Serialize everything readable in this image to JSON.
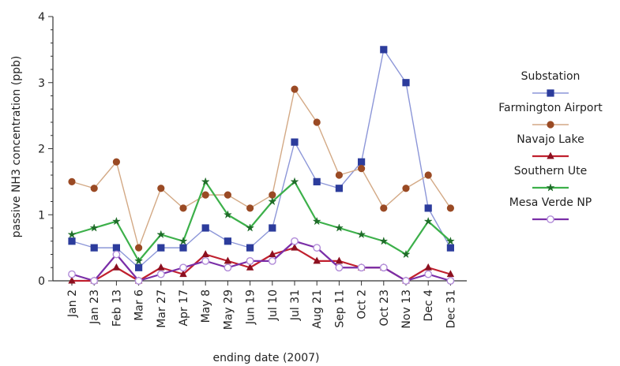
{
  "chart_data": {
    "type": "line",
    "title": "",
    "xlabel": "ending date (2007)",
    "ylabel": "passive NH3 concentration (ppb)",
    "ylim": [
      0,
      4
    ],
    "yticks": [
      "0",
      "1",
      "2",
      "3",
      "4"
    ],
    "grid": false,
    "legend_position": "right",
    "categories": [
      "Jan 2",
      "Jan 23",
      "Feb 13",
      "Mar 6",
      "Mar 27",
      "Apr 17",
      "May 8",
      "May 29",
      "Jun 19",
      "Jul 10",
      "Jul 31",
      "Aug 21",
      "Sep 11",
      "Oct 2",
      "Oct 23",
      "Nov 13",
      "Dec 4",
      "Dec 31"
    ],
    "series": [
      {
        "name": "Substation",
        "color": "#8c96d8",
        "marker_color": "#2c3c9c",
        "marker": "square",
        "values": [
          0.6,
          0.5,
          0.5,
          0.2,
          0.5,
          0.5,
          0.8,
          0.6,
          0.5,
          0.8,
          2.1,
          1.5,
          1.4,
          1.8,
          3.5,
          3.0,
          1.1,
          0.5
        ]
      },
      {
        "name": "Farmington Airport",
        "color": "#d3a985",
        "marker_color": "#9a4a24",
        "marker": "circle",
        "values": [
          1.5,
          1.4,
          1.8,
          0.5,
          1.4,
          1.1,
          1.3,
          1.3,
          1.1,
          1.3,
          2.9,
          2.4,
          1.6,
          1.7,
          1.1,
          1.4,
          1.6,
          1.1
        ]
      },
      {
        "name": "Navajo Lake",
        "color": "#c0202e",
        "marker_color": "#8c1020",
        "marker": "triangle",
        "values": [
          0.0,
          0.0,
          0.2,
          0.0,
          0.2,
          0.1,
          0.4,
          0.3,
          0.2,
          0.4,
          0.5,
          0.3,
          0.3,
          0.2,
          0.2,
          0.0,
          0.2,
          0.1
        ]
      },
      {
        "name": "Southern Ute",
        "color": "#3cb04a",
        "marker_color": "#1e6c28",
        "marker": "star",
        "values": [
          0.7,
          0.8,
          0.9,
          0.3,
          0.7,
          0.6,
          1.5,
          1.0,
          0.8,
          1.2,
          1.5,
          0.9,
          0.8,
          0.7,
          0.6,
          0.4,
          0.9,
          0.6
        ]
      },
      {
        "name": "Mesa Verde NP",
        "color": "#7a2ea8",
        "marker_color": "#b08ad8",
        "marker": "circle-open",
        "values": [
          0.1,
          0.0,
          0.4,
          0.0,
          0.1,
          0.2,
          0.3,
          0.2,
          0.3,
          0.3,
          0.6,
          0.5,
          0.2,
          0.2,
          0.2,
          0.0,
          0.1,
          0.0
        ]
      }
    ]
  }
}
